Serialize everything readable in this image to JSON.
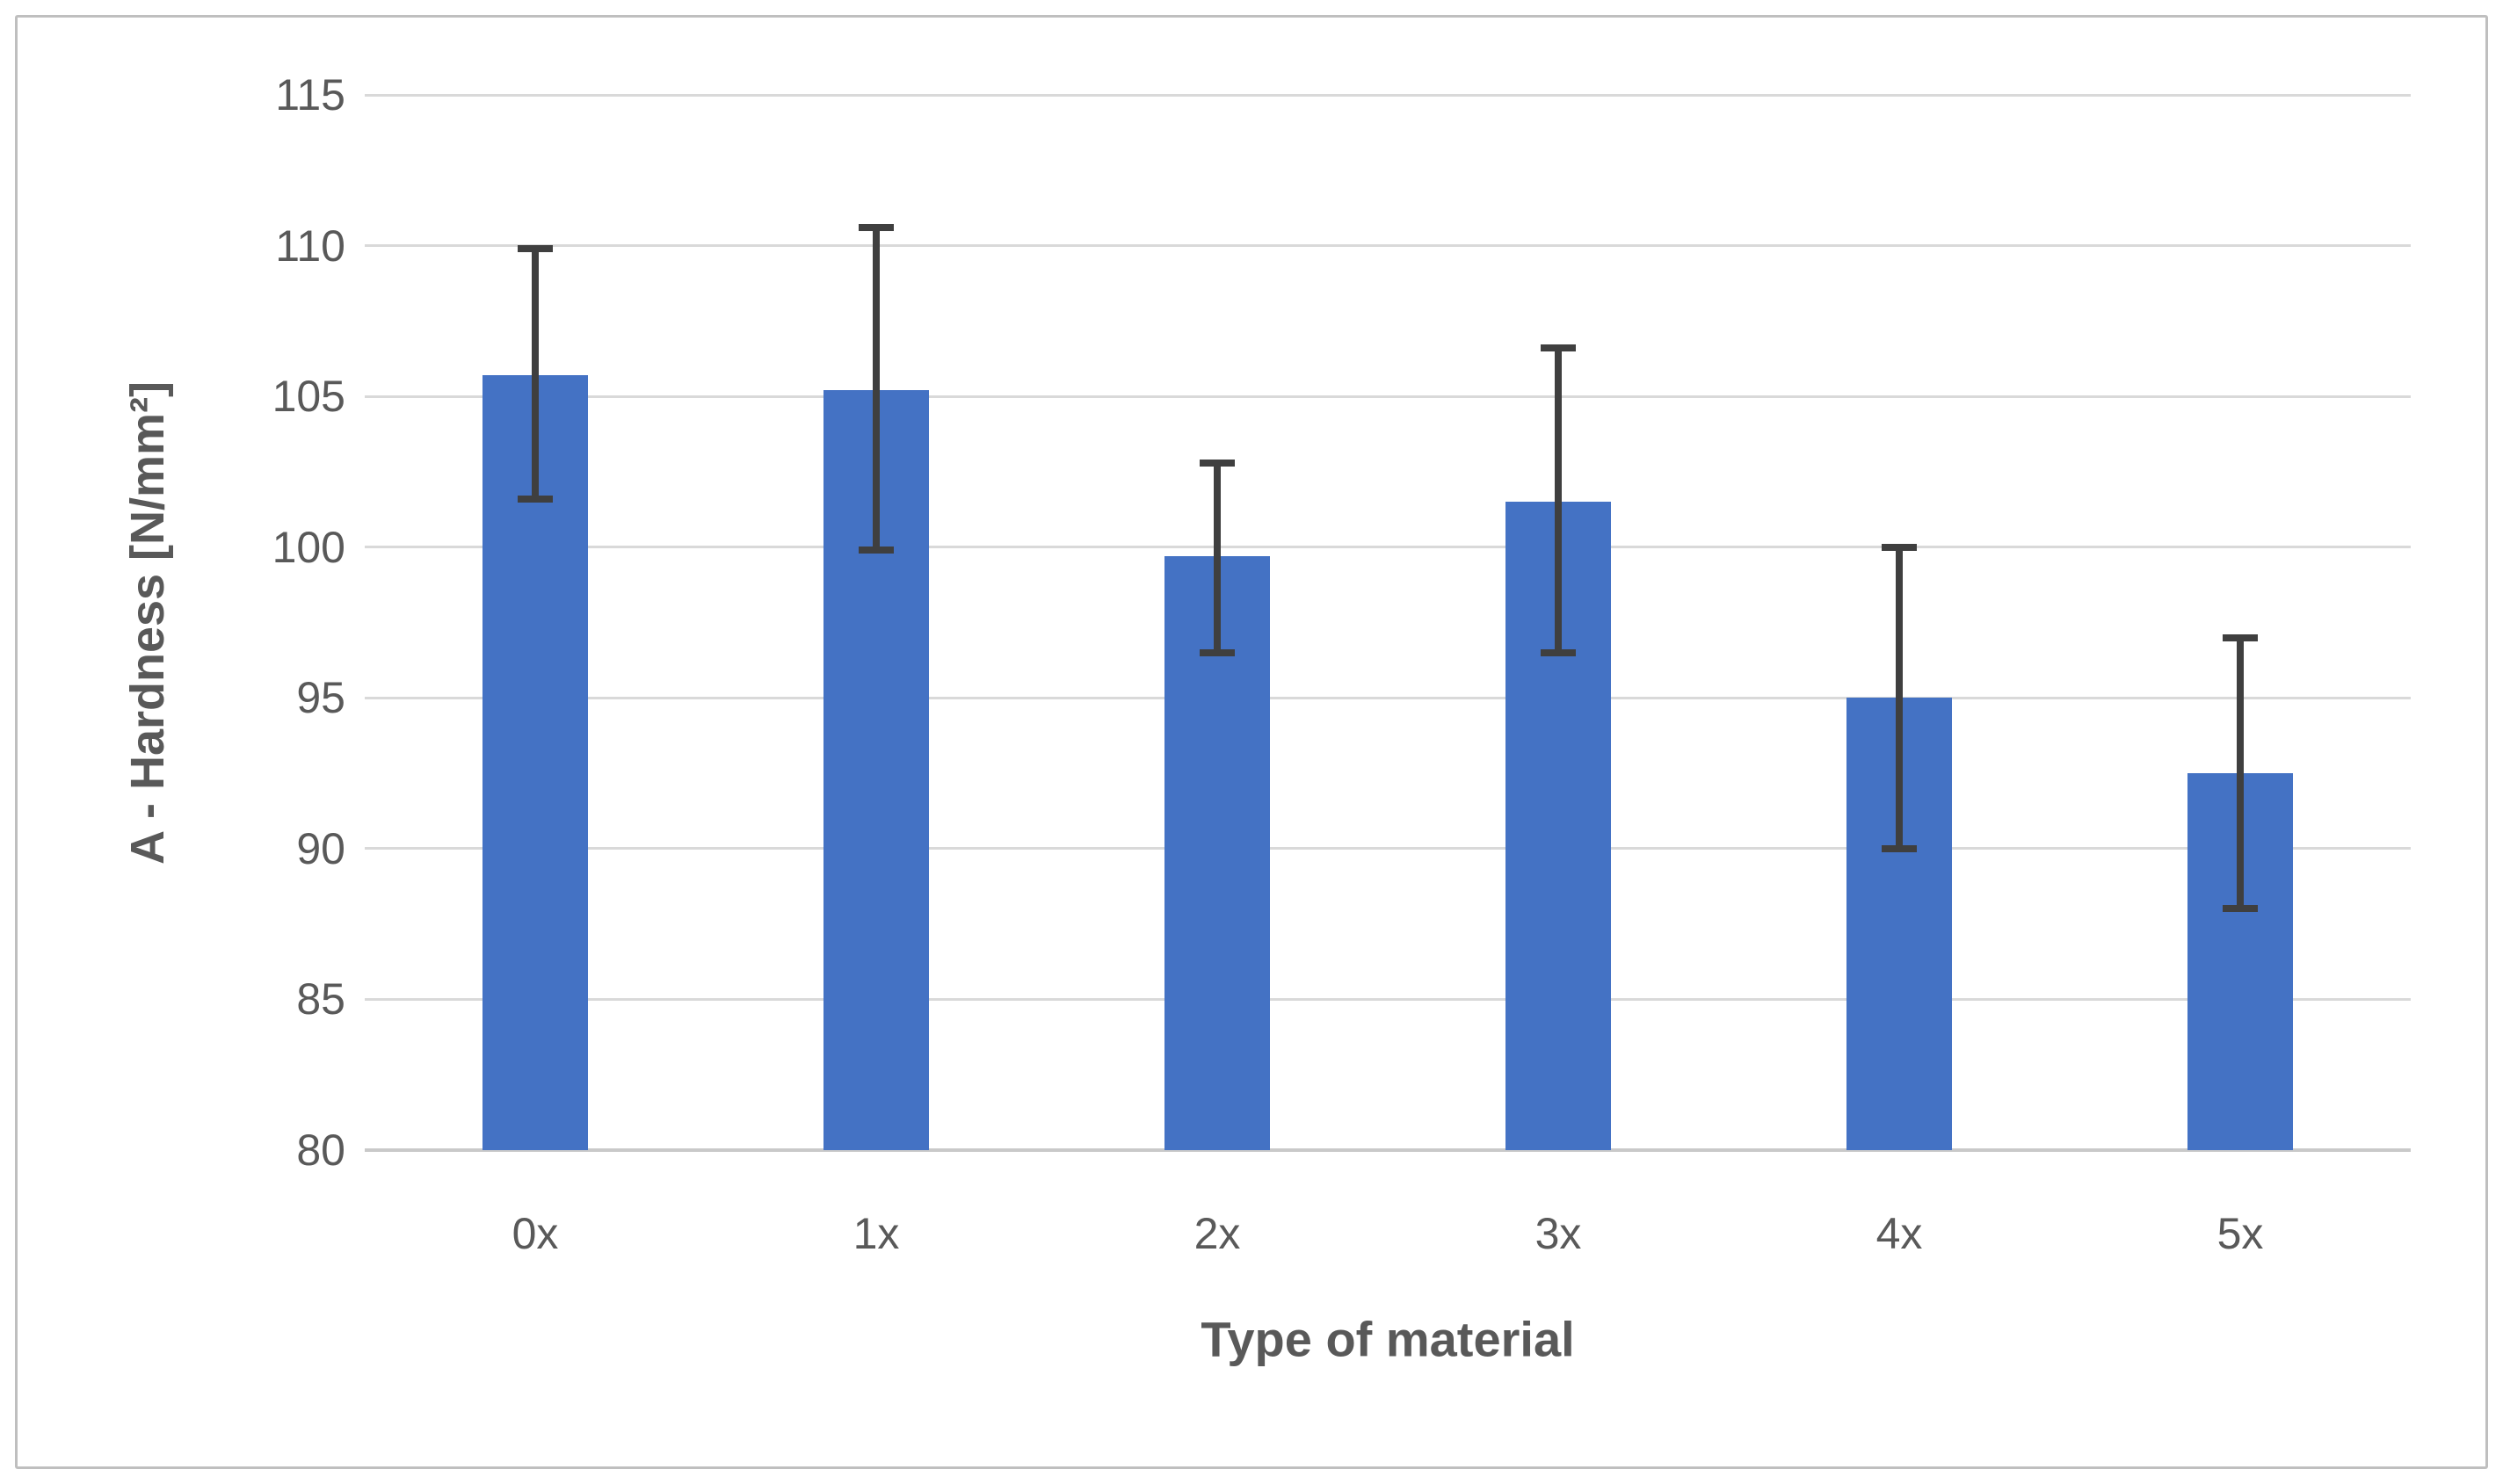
{
  "figure": {
    "background": "#ffffff",
    "frame_border_color": "#bfbfbf"
  },
  "chart_data": {
    "type": "bar",
    "title": "",
    "categories": [
      "0x",
      "1x",
      "2x",
      "3x",
      "4x",
      "5x"
    ],
    "values": [
      105.7,
      105.2,
      99.7,
      101.5,
      95.0,
      92.5
    ],
    "error_low": [
      101.6,
      99.9,
      96.5,
      96.5,
      90.0,
      88.0
    ],
    "error_high": [
      109.9,
      110.6,
      102.8,
      106.6,
      100.0,
      97.0
    ],
    "xlabel": "Type of material",
    "ylabel": "A - Hardness [N/mm²]",
    "ylim": [
      80,
      115
    ],
    "yticks": [
      80,
      85,
      90,
      95,
      100,
      105,
      110,
      115
    ],
    "grid": "horizontal gridlines on, topmost at 115, baseline at 80",
    "legend": "none",
    "colors": {
      "bar": "#4472C4",
      "error_bar": "#3f3f3f",
      "gridline": "#d9d9d9",
      "axis_line": "#c9c9c9",
      "tick_label": "#595959",
      "axis_title": "#595959"
    }
  }
}
